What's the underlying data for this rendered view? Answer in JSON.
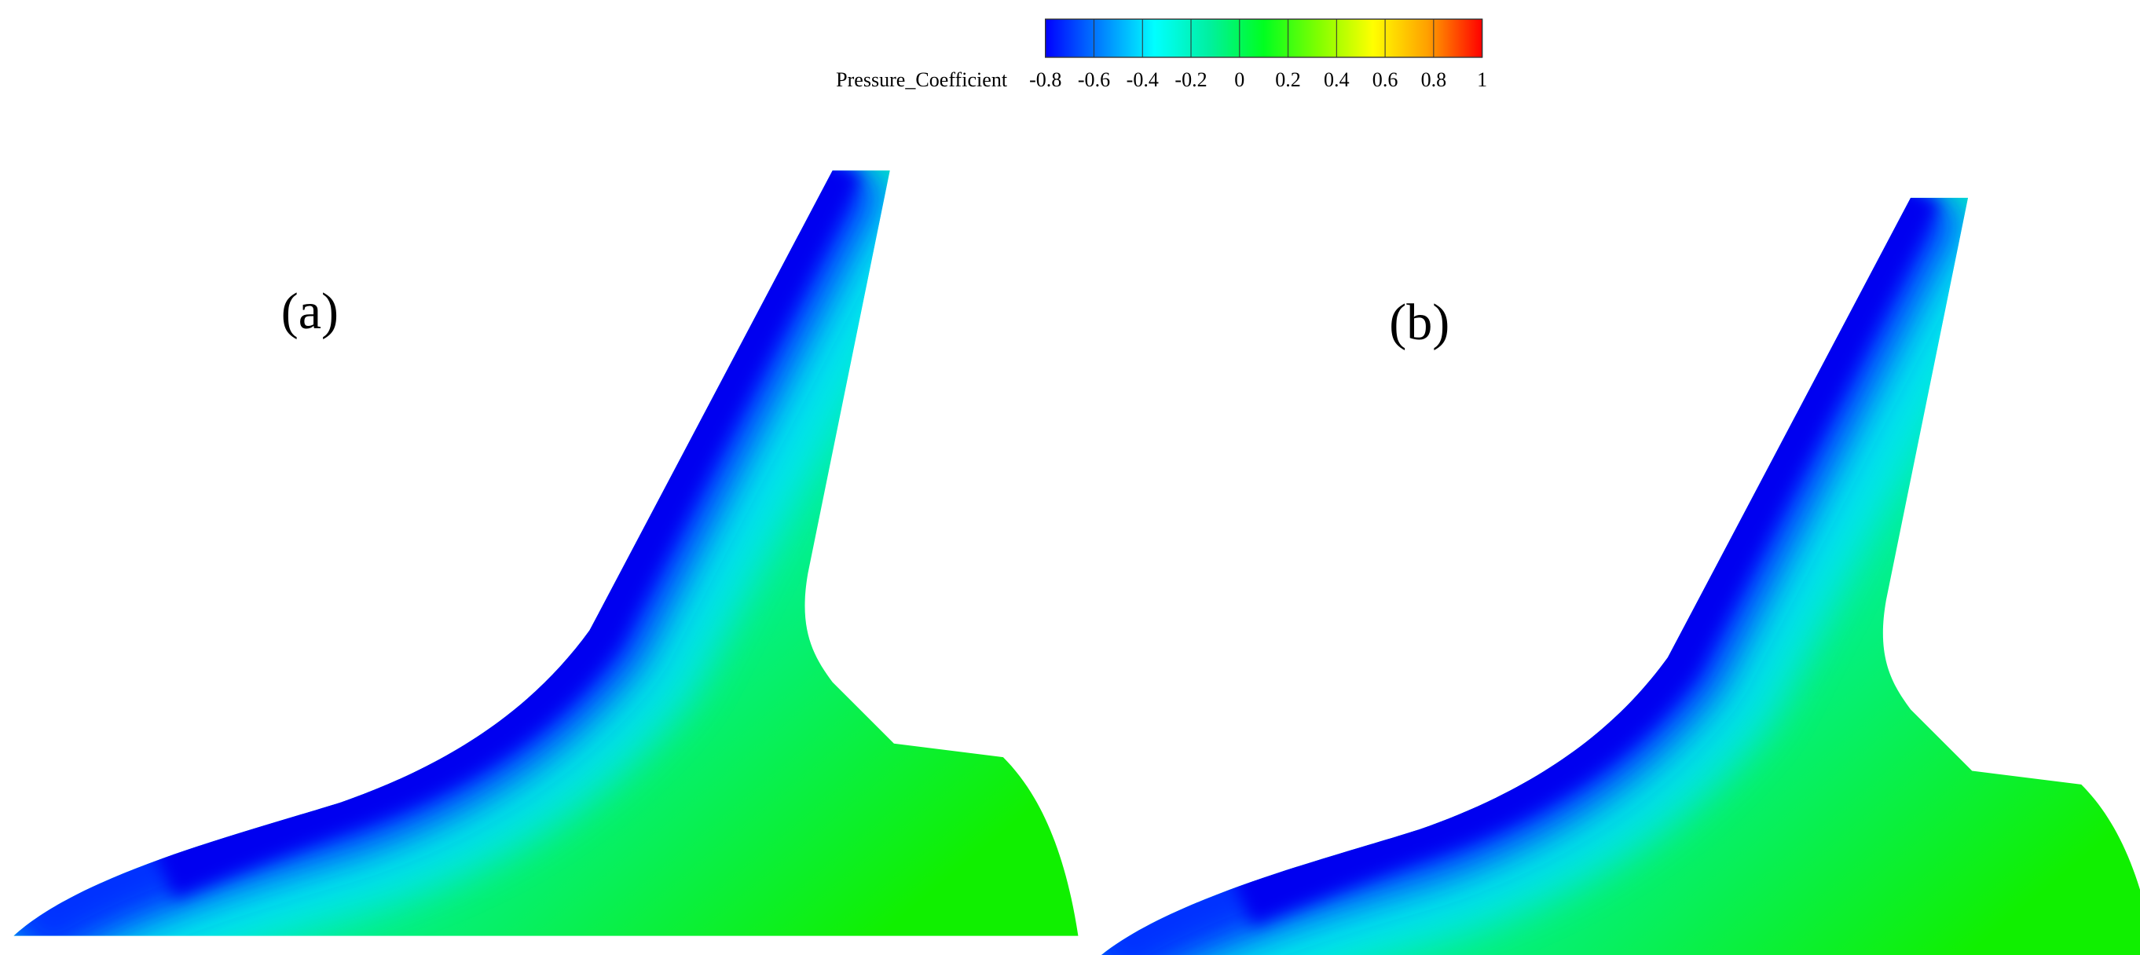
{
  "colorbar": {
    "label": "Pressure_Coefficient",
    "range": [
      -0.8,
      1
    ],
    "ticks": [
      -0.8,
      -0.6,
      -0.4,
      -0.2,
      0,
      0.2,
      0.4,
      0.6,
      0.8,
      1
    ],
    "colors": [
      "#0000ff",
      "#0080ff",
      "#00ffff",
      "#00f0a0",
      "#00ff20",
      "#80ff00",
      "#ffff00",
      "#ffa000",
      "#ff0000"
    ]
  },
  "panels": [
    {
      "label": "(a)"
    },
    {
      "label": "(b)"
    }
  ]
}
